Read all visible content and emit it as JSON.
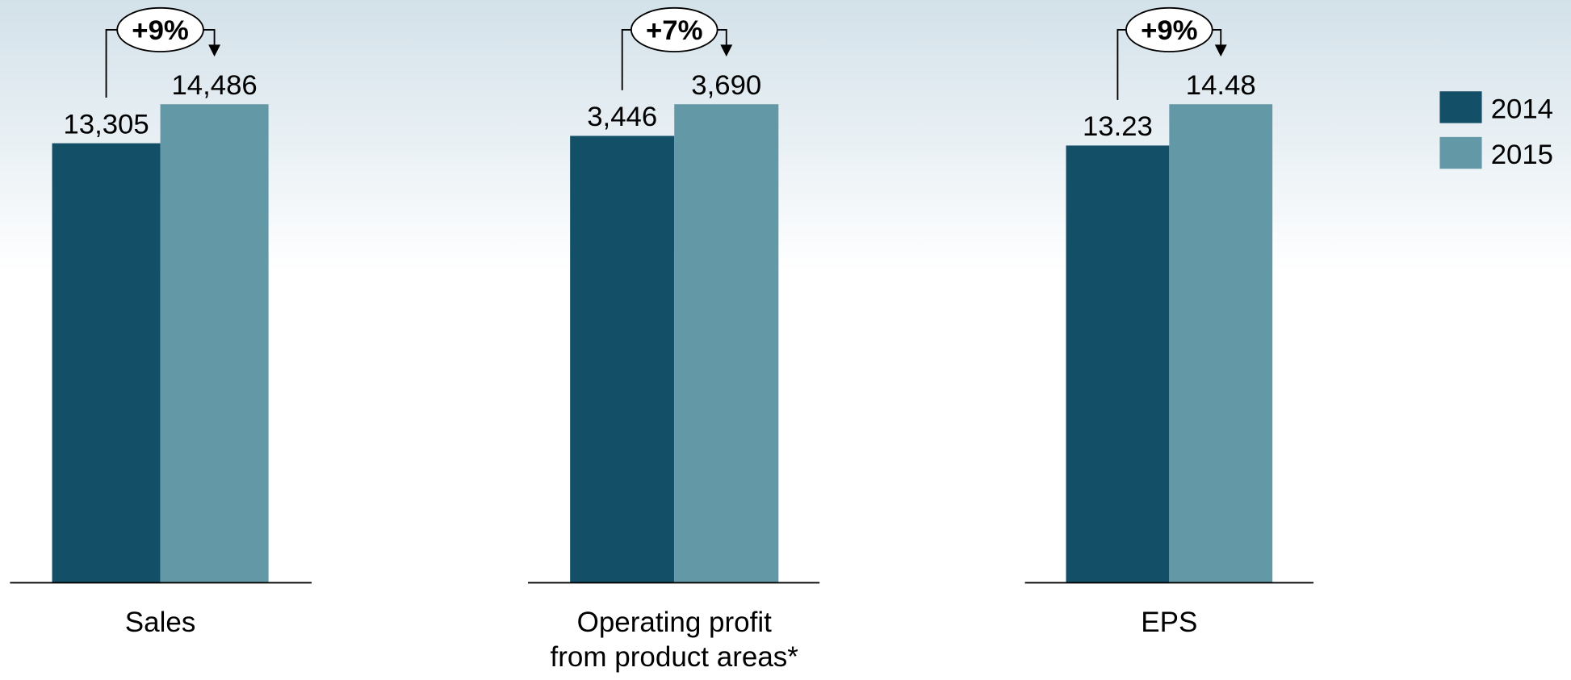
{
  "chart_data": [
    {
      "type": "bar",
      "categories": [
        "Sales"
      ],
      "annotation": "+9%",
      "series": [
        {
          "name": "2014",
          "color": "#134f67",
          "values": [
            13305
          ],
          "value_labels": [
            "13,305"
          ]
        },
        {
          "name": "2015",
          "color": "#6399a6",
          "values": [
            14486
          ],
          "value_labels": [
            "14,486"
          ]
        }
      ]
    },
    {
      "type": "bar",
      "categories": [
        "Operating profit\nfrom product areas*"
      ],
      "annotation": "+7%",
      "series": [
        {
          "name": "2014",
          "color": "#134f67",
          "values": [
            3446
          ],
          "value_labels": [
            "3,446"
          ]
        },
        {
          "name": "2015",
          "color": "#6399a6",
          "values": [
            3690
          ],
          "value_labels": [
            "3,690"
          ]
        }
      ]
    },
    {
      "type": "bar",
      "categories": [
        "EPS"
      ],
      "annotation": "+9%",
      "series": [
        {
          "name": "2014",
          "color": "#134f67",
          "values": [
            13.23
          ]
        },
        {
          "name": "2015",
          "color": "#6399a6",
          "values": [
            14.48
          ]
        }
      ]
    }
  ]
}
